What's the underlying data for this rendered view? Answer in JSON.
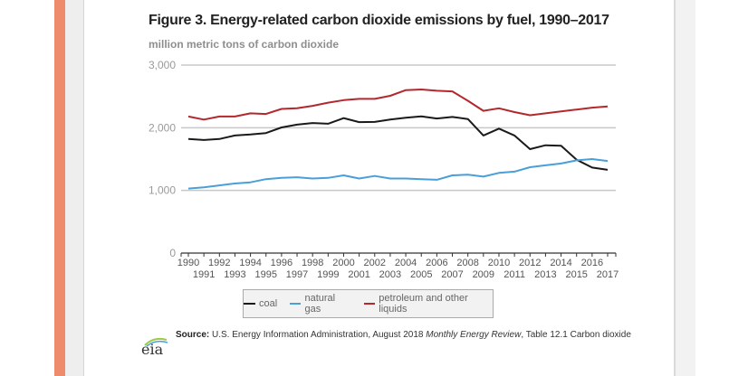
{
  "figure": {
    "title": "Figure 3. Energy-related carbon dioxide emissions by fuel, 1990–2017",
    "subtitle": "million metric tons of carbon dioxide",
    "source_label": "Source:",
    "source_text_1": " U.S. Energy Information Administration, August 2018 ",
    "source_italic": "Monthly Energy Review",
    "source_text_2": ", Table 12.1 Carbon dioxide",
    "logo_text": "eia",
    "logo_icon": "eia-logo-icon"
  },
  "colors": {
    "accent_bar": "#ee8b6c",
    "coal": "#1a1a1a",
    "natural_gas": "#4a9fd8",
    "petroleum": "#b3282d",
    "grid": "#c8c8c8"
  },
  "chart_data": {
    "type": "line",
    "title": "Figure 3. Energy-related carbon dioxide emissions by fuel, 1990–2017",
    "subtitle": "million metric tons of carbon dioxide",
    "xlabel": "",
    "ylabel": "million metric tons of carbon dioxide",
    "ylim": [
      0,
      3000
    ],
    "xlim": [
      1990,
      2017
    ],
    "yticks": [
      0,
      1000,
      2000,
      3000
    ],
    "ytick_labels": [
      "0",
      "1,000",
      "2,000",
      "3,000"
    ],
    "grid": true,
    "legend_position": "bottom",
    "x": [
      1990,
      1991,
      1992,
      1993,
      1994,
      1995,
      1996,
      1997,
      1998,
      1999,
      2000,
      2001,
      2002,
      2003,
      2004,
      2005,
      2006,
      2007,
      2008,
      2009,
      2010,
      2011,
      2012,
      2013,
      2014,
      2015,
      2016,
      2017
    ],
    "series": [
      {
        "name": "coal",
        "color": "#1a1a1a",
        "values": [
          1821,
          1805,
          1820,
          1876,
          1892,
          1915,
          2005,
          2049,
          2075,
          2064,
          2154,
          2090,
          2093,
          2131,
          2160,
          2182,
          2147,
          2172,
          2139,
          1876,
          1986,
          1876,
          1658,
          1720,
          1713,
          1490,
          1364,
          1328
        ]
      },
      {
        "name": "natural gas",
        "color": "#4a9fd8",
        "values": [
          1030,
          1050,
          1080,
          1110,
          1130,
          1180,
          1200,
          1210,
          1190,
          1200,
          1240,
          1190,
          1230,
          1190,
          1190,
          1180,
          1170,
          1240,
          1250,
          1220,
          1280,
          1300,
          1370,
          1400,
          1430,
          1480,
          1500,
          1470
        ]
      },
      {
        "name": "petroleum and other liquids",
        "color": "#b3282d",
        "values": [
          2180,
          2130,
          2180,
          2180,
          2230,
          2220,
          2300,
          2310,
          2350,
          2400,
          2440,
          2460,
          2460,
          2510,
          2600,
          2610,
          2590,
          2580,
          2430,
          2270,
          2310,
          2250,
          2200,
          2230,
          2260,
          2290,
          2320,
          2340
        ]
      }
    ]
  }
}
